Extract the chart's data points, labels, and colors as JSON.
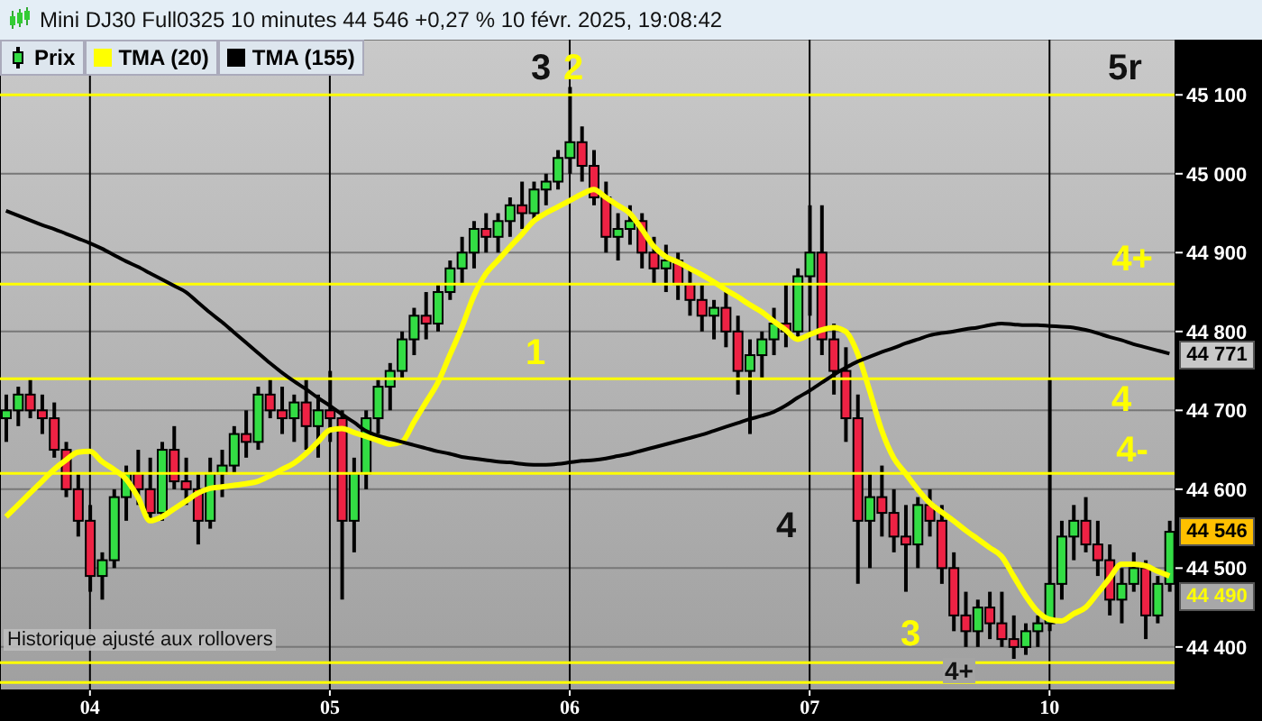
{
  "chart_data": {
    "type": "candlestick",
    "title": "Mini DJ30 Full0325 10 minutes 44 546 +0,27 % 10 févr. 2025, 19:08:42",
    "categories": [
      null,
      null,
      null,
      null,
      null,
      null,
      null,
      "04",
      null,
      null,
      null,
      null,
      null,
      null,
      null,
      null,
      null,
      null,
      null,
      null,
      null,
      null,
      null,
      null,
      null,
      null,
      null,
      "05",
      null,
      null,
      null,
      null,
      null,
      null,
      null,
      null,
      null,
      null,
      null,
      null,
      null,
      null,
      null,
      null,
      null,
      null,
      null,
      "06",
      null,
      null,
      null,
      null,
      null,
      null,
      null,
      null,
      null,
      null,
      null,
      null,
      null,
      null,
      null,
      null,
      null,
      null,
      null,
      "07",
      null,
      null,
      null,
      null,
      null,
      null,
      null,
      null,
      null,
      null,
      null,
      null,
      null,
      null,
      null,
      null,
      null,
      null,
      null,
      "10",
      null,
      null,
      null,
      null,
      null,
      null,
      null,
      null,
      null,
      null
    ],
    "ylim": [
      44345,
      45170
    ],
    "yticks": [
      {
        "value": 44400,
        "label": "44 400"
      },
      {
        "value": 44500,
        "label": "44 500"
      },
      {
        "value": 44600,
        "label": "44 600"
      },
      {
        "value": 44700,
        "label": "44 700"
      },
      {
        "value": 44800,
        "label": "44 800"
      },
      {
        "value": 44900,
        "label": "44 900"
      },
      {
        "value": 45000,
        "label": "45 000"
      },
      {
        "value": 45100,
        "label": "45 100"
      }
    ],
    "grid": true,
    "legend": "top left",
    "series": [
      {
        "name": "Prix",
        "type": "candlestick",
        "ohlc": [
          [
            44690,
            44720,
            44660,
            44700
          ],
          [
            44700,
            44730,
            44680,
            44720
          ],
          [
            44720,
            44740,
            44690,
            44700
          ],
          [
            44700,
            44720,
            44670,
            44690
          ],
          [
            44690,
            44710,
            44640,
            44650
          ],
          [
            44650,
            44660,
            44590,
            44600
          ],
          [
            44600,
            44620,
            44540,
            44560
          ],
          [
            44560,
            44580,
            44470,
            44490
          ],
          [
            44490,
            44520,
            44460,
            44510
          ],
          [
            44510,
            44600,
            44500,
            44590
          ],
          [
            44590,
            44630,
            44560,
            44620
          ],
          [
            44620,
            44650,
            44580,
            44600
          ],
          [
            44600,
            44640,
            44560,
            44570
          ],
          [
            44570,
            44660,
            44560,
            44650
          ],
          [
            44650,
            44680,
            44600,
            44610
          ],
          [
            44610,
            44640,
            44580,
            44600
          ],
          [
            44600,
            44620,
            44530,
            44560
          ],
          [
            44560,
            44640,
            44550,
            44620
          ],
          [
            44620,
            44650,
            44590,
            44630
          ],
          [
            44630,
            44680,
            44620,
            44670
          ],
          [
            44670,
            44700,
            44640,
            44660
          ],
          [
            44660,
            44730,
            44650,
            44720
          ],
          [
            44720,
            44740,
            44690,
            44700
          ],
          [
            44700,
            44730,
            44670,
            44690
          ],
          [
            44690,
            44720,
            44660,
            44710
          ],
          [
            44710,
            44740,
            44650,
            44680
          ],
          [
            44680,
            44720,
            44640,
            44700
          ],
          [
            44700,
            44750,
            44660,
            44690
          ],
          [
            44690,
            44700,
            44460,
            44560
          ],
          [
            44560,
            44640,
            44520,
            44620
          ],
          [
            44620,
            44700,
            44600,
            44690
          ],
          [
            44690,
            44740,
            44670,
            44730
          ],
          [
            44730,
            44760,
            44700,
            44750
          ],
          [
            44750,
            44800,
            44740,
            44790
          ],
          [
            44790,
            44830,
            44770,
            44820
          ],
          [
            44820,
            44850,
            44790,
            44810
          ],
          [
            44810,
            44860,
            44800,
            44850
          ],
          [
            44850,
            44890,
            44840,
            44880
          ],
          [
            44880,
            44920,
            44860,
            44900
          ],
          [
            44900,
            44940,
            44880,
            44930
          ],
          [
            44930,
            44950,
            44900,
            44920
          ],
          [
            44920,
            44950,
            44900,
            44940
          ],
          [
            44940,
            44970,
            44920,
            44960
          ],
          [
            44960,
            44990,
            44930,
            44950
          ],
          [
            44950,
            44990,
            44940,
            44980
          ],
          [
            44980,
            45000,
            44960,
            44990
          ],
          [
            44990,
            45030,
            44980,
            45020
          ],
          [
            45020,
            45110,
            45000,
            45040
          ],
          [
            45040,
            45060,
            44990,
            45010
          ],
          [
            45010,
            45030,
            44960,
            44970
          ],
          [
            44970,
            44990,
            44900,
            44920
          ],
          [
            44920,
            44950,
            44890,
            44930
          ],
          [
            44930,
            44960,
            44910,
            44940
          ],
          [
            44940,
            44950,
            44880,
            44900
          ],
          [
            44900,
            44920,
            44860,
            44880
          ],
          [
            44880,
            44910,
            44850,
            44890
          ],
          [
            44890,
            44900,
            44840,
            44860
          ],
          [
            44860,
            44880,
            44820,
            44840
          ],
          [
            44840,
            44860,
            44800,
            44820
          ],
          [
            44820,
            44840,
            44790,
            44830
          ],
          [
            44830,
            44850,
            44780,
            44800
          ],
          [
            44800,
            44820,
            44720,
            44750
          ],
          [
            44750,
            44790,
            44670,
            44770
          ],
          [
            44770,
            44800,
            44740,
            44790
          ],
          [
            44790,
            44830,
            44770,
            44810
          ],
          [
            44810,
            44860,
            44780,
            44800
          ],
          [
            44800,
            44880,
            44790,
            44870
          ],
          [
            44870,
            44960,
            44820,
            44900
          ],
          [
            44900,
            44960,
            44770,
            44790
          ],
          [
            44790,
            44810,
            44720,
            44750
          ],
          [
            44750,
            44780,
            44660,
            44690
          ],
          [
            44690,
            44720,
            44480,
            44560
          ],
          [
            44560,
            44620,
            44500,
            44590
          ],
          [
            44590,
            44630,
            44540,
            44570
          ],
          [
            44570,
            44600,
            44520,
            44540
          ],
          [
            44540,
            44580,
            44470,
            44530
          ],
          [
            44530,
            44590,
            44500,
            44580
          ],
          [
            44580,
            44600,
            44540,
            44560
          ],
          [
            44560,
            44580,
            44480,
            44500
          ],
          [
            44500,
            44520,
            44420,
            44440
          ],
          [
            44440,
            44470,
            44400,
            44420
          ],
          [
            44420,
            44460,
            44400,
            44450
          ],
          [
            44450,
            44470,
            44410,
            44430
          ],
          [
            44430,
            44470,
            44400,
            44410
          ],
          [
            44410,
            44440,
            44385,
            44400
          ],
          [
            44400,
            44430,
            44390,
            44420
          ],
          [
            44420,
            44440,
            44400,
            44430
          ],
          [
            44430,
            44740,
            44420,
            44480
          ],
          [
            44480,
            44560,
            44460,
            44540
          ],
          [
            44540,
            44580,
            44510,
            44560
          ],
          [
            44560,
            44590,
            44520,
            44530
          ],
          [
            44530,
            44560,
            44490,
            44510
          ],
          [
            44510,
            44530,
            44440,
            44460
          ],
          [
            44460,
            44500,
            44430,
            44480
          ],
          [
            44480,
            44520,
            44470,
            44500
          ],
          [
            44500,
            44510,
            44410,
            44440
          ],
          [
            44440,
            44490,
            44430,
            44480
          ],
          [
            44480,
            44560,
            44470,
            44546
          ]
        ]
      },
      {
        "name": "TMA (20)",
        "type": "line",
        "color": "#ffff00",
        "values": [
          44565,
          44580,
          44595,
          44610,
          44625,
          44637,
          44647,
          44648,
          44635,
          44625,
          44613,
          44590,
          44560,
          44565,
          44575,
          44585,
          44595,
          44601,
          44603,
          44605,
          44607,
          44610,
          44617,
          44625,
          44633,
          44645,
          44660,
          44675,
          44677,
          44672,
          44667,
          44662,
          44657,
          44660,
          44685,
          44710,
          44735,
          44770,
          44805,
          44845,
          44873,
          44890,
          44907,
          44923,
          44940,
          44950,
          44958,
          44966,
          44974,
          44980,
          44970,
          44960,
          44950,
          44930,
          44908,
          44895,
          44888,
          44880,
          44872,
          44863,
          44853,
          44844,
          44834,
          44825,
          44813,
          44802,
          44790,
          44796,
          44802,
          44805,
          44800,
          44772,
          44725,
          44675,
          44640,
          44620,
          44600,
          44583,
          44571,
          44560,
          44548,
          44537,
          44526,
          44515,
          44490,
          44465,
          44445,
          44435,
          44433,
          44442,
          44450,
          44468,
          44487,
          44505,
          44505,
          44503,
          44496,
          44490
        ]
      },
      {
        "name": "TMA (155)",
        "type": "line",
        "color": "#000000",
        "values": [
          44953,
          44947,
          44941,
          44935,
          44930,
          44924,
          44918,
          44912,
          44905,
          44897,
          44889,
          44882,
          44874,
          44866,
          44858,
          44850,
          44837,
          44824,
          44812,
          44799,
          44786,
          44773,
          44760,
          44748,
          44737,
          44727,
          44716,
          44706,
          44695,
          44685,
          44674,
          44668,
          44664,
          44660,
          44656,
          44652,
          44648,
          44645,
          44641,
          44639,
          44637,
          44635,
          44634,
          44632,
          44631,
          44631,
          44632,
          44634,
          44636,
          44637,
          44639,
          44642,
          44645,
          44649,
          44653,
          44657,
          44661,
          44665,
          44669,
          44674,
          44679,
          44684,
          44689,
          44693,
          44698,
          44706,
          44716,
          44725,
          44735,
          44745,
          44754,
          44762,
          44768,
          44774,
          44779,
          44785,
          44790,
          44795,
          44798,
          44800,
          44803,
          44805,
          44808,
          44810,
          44809,
          44808,
          44808,
          44807,
          44806,
          44805,
          44802,
          44798,
          44793,
          44789,
          44784,
          44780,
          44776,
          44772
        ]
      }
    ],
    "ref_lines": [
      {
        "axis": "y",
        "value": 45100,
        "color": "#ffff00"
      },
      {
        "axis": "y",
        "value": 44860,
        "color": "#ffff00"
      },
      {
        "axis": "y",
        "value": 44740,
        "color": "#ffff00"
      },
      {
        "axis": "y",
        "value": 44620,
        "color": "#ffff00"
      },
      {
        "axis": "y",
        "value": 44380,
        "color": "#ffff00"
      },
      {
        "axis": "y",
        "value": 44355,
        "color": "#ffff00"
      }
    ],
    "annotations": [
      "Historique ajusté aux rollovers",
      "3",
      "2",
      "1",
      "4",
      "3",
      "4+",
      "5r",
      "44 771",
      "44 546",
      "44 490",
      "4+",
      "4",
      "4-"
    ]
  }
}
